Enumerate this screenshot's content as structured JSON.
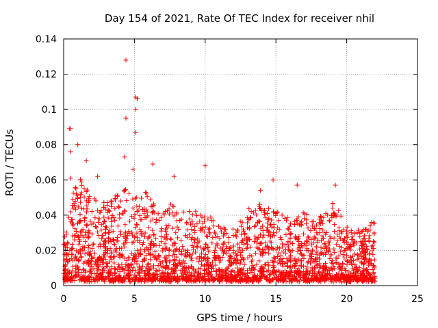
{
  "chart_data": {
    "type": "scatter",
    "title": "Day 154 of 2021, Rate Of TEC Index for receiver nhil",
    "xlabel": "GPS time / hours",
    "ylabel": "ROTI / TECUs",
    "xlim": [
      0,
      25
    ],
    "ylim": [
      0,
      0.14
    ],
    "xticks": [
      0,
      5,
      10,
      15,
      20,
      25
    ],
    "yticks": [
      0,
      0.02,
      0.04,
      0.06,
      0.08,
      0.1,
      0.12,
      0.14
    ],
    "xtick_labels": [
      "0",
      "5",
      "10",
      "15",
      "20",
      "25"
    ],
    "ytick_labels": [
      "0",
      "0.02",
      "0.04",
      "0.06",
      "0.08",
      "0.1",
      "0.12",
      "0.14"
    ],
    "grid": true,
    "marker": "+",
    "color": "#ff0000",
    "data_x_range": [
      0,
      22
    ],
    "series": [
      {
        "name": "ROTI",
        "outliers": [
          {
            "x": 0.4,
            "y": 0.089
          },
          {
            "x": 0.5,
            "y": 0.089
          },
          {
            "x": 4.4,
            "y": 0.128
          },
          {
            "x": 4.4,
            "y": 0.095
          },
          {
            "x": 5.1,
            "y": 0.107
          },
          {
            "x": 5.2,
            "y": 0.106
          },
          {
            "x": 5.1,
            "y": 0.1
          },
          {
            "x": 5.1,
            "y": 0.087
          },
          {
            "x": 1.0,
            "y": 0.08
          },
          {
            "x": 0.5,
            "y": 0.076
          },
          {
            "x": 4.3,
            "y": 0.073
          },
          {
            "x": 1.6,
            "y": 0.071
          },
          {
            "x": 10.0,
            "y": 0.068
          },
          {
            "x": 6.3,
            "y": 0.069
          },
          {
            "x": 4.9,
            "y": 0.066
          },
          {
            "x": 0.5,
            "y": 0.061
          },
          {
            "x": 7.8,
            "y": 0.062
          },
          {
            "x": 14.8,
            "y": 0.06
          },
          {
            "x": 16.5,
            "y": 0.057
          },
          {
            "x": 19.2,
            "y": 0.057
          },
          {
            "x": 2.4,
            "y": 0.062
          },
          {
            "x": 13.9,
            "y": 0.054
          }
        ],
        "envelope": [
          {
            "x": 0.0,
            "y": 0.022
          },
          {
            "x": 0.5,
            "y": 0.045
          },
          {
            "x": 1.0,
            "y": 0.06
          },
          {
            "x": 2.0,
            "y": 0.05
          },
          {
            "x": 3.0,
            "y": 0.045
          },
          {
            "x": 4.0,
            "y": 0.05
          },
          {
            "x": 5.0,
            "y": 0.055
          },
          {
            "x": 6.0,
            "y": 0.05
          },
          {
            "x": 7.0,
            "y": 0.04
          },
          {
            "x": 8.0,
            "y": 0.045
          },
          {
            "x": 9.0,
            "y": 0.04
          },
          {
            "x": 10.0,
            "y": 0.04
          },
          {
            "x": 11.0,
            "y": 0.03
          },
          {
            "x": 12.0,
            "y": 0.03
          },
          {
            "x": 13.0,
            "y": 0.04
          },
          {
            "x": 14.0,
            "y": 0.045
          },
          {
            "x": 15.0,
            "y": 0.045
          },
          {
            "x": 16.0,
            "y": 0.035
          },
          {
            "x": 17.0,
            "y": 0.04
          },
          {
            "x": 18.0,
            "y": 0.035
          },
          {
            "x": 19.0,
            "y": 0.045
          },
          {
            "x": 20.0,
            "y": 0.03
          },
          {
            "x": 21.0,
            "y": 0.03
          },
          {
            "x": 22.0,
            "y": 0.035
          }
        ]
      }
    ]
  }
}
